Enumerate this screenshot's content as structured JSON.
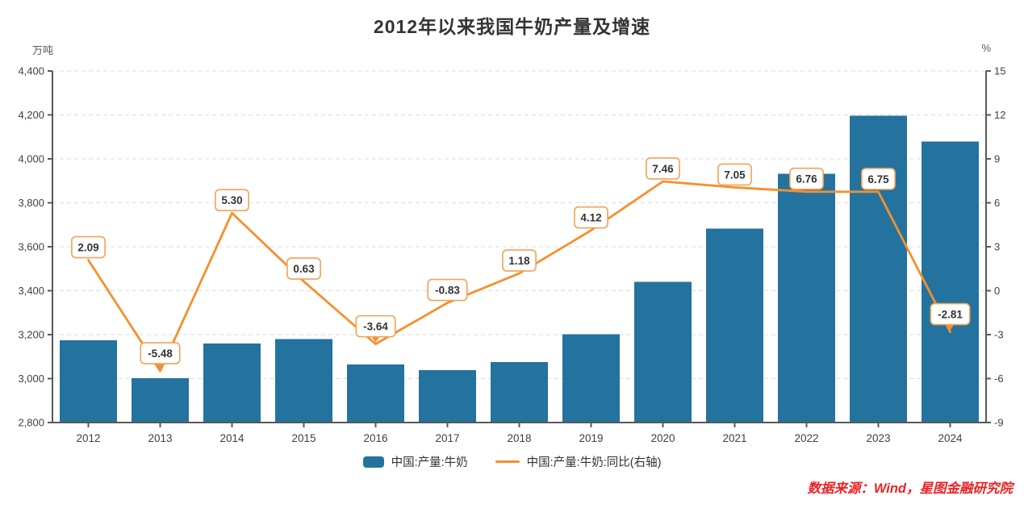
{
  "title": "2012年以来我国牛奶产量及增速",
  "source": "数据来源：Wind，星图金融研究院",
  "axes": {
    "left_unit": "万吨",
    "right_unit": "%"
  },
  "chart_data": {
    "type": "bar",
    "subtype": "bar+line combo, dual axis",
    "title": "2012年以来我国牛奶产量及增速",
    "categories": [
      "2012",
      "2013",
      "2014",
      "2015",
      "2016",
      "2017",
      "2018",
      "2019",
      "2020",
      "2021",
      "2022",
      "2023",
      "2024"
    ],
    "series": [
      {
        "name": "中国:产量:牛奶",
        "type": "bar",
        "axis": "left",
        "unit": "万吨",
        "values": [
          3175,
          3001,
          3160,
          3180,
          3064,
          3039,
          3075,
          3201,
          3440,
          3683,
          3932,
          4197,
          4079
        ]
      },
      {
        "name": "中国:产量:牛奶:同比(右轴)",
        "type": "line",
        "axis": "right",
        "unit": "%",
        "values": [
          2.09,
          -5.48,
          5.3,
          0.63,
          -3.64,
          -0.83,
          1.18,
          4.12,
          7.46,
          7.05,
          6.76,
          6.75,
          -2.81
        ],
        "point_labels": [
          "2.09",
          "-5.48",
          "5.30",
          "0.63",
          "-3.64",
          "-0.83",
          "1.18",
          "4.12",
          "7.46",
          "7.05",
          "6.76",
          "6.75",
          "-2.81"
        ],
        "callout_arrow_indices": [
          1,
          4,
          12
        ]
      }
    ],
    "left_axis": {
      "label": "万吨",
      "min": 2800,
      "max": 4400,
      "step": 200,
      "tick_labels": [
        "2,800",
        "3,000",
        "3,200",
        "3,400",
        "3,600",
        "3,800",
        "4,000",
        "4,200",
        "4,400"
      ]
    },
    "right_axis": {
      "label": "%",
      "min": -9,
      "max": 15,
      "step": 3,
      "tick_labels": [
        "-9",
        "-6",
        "-3",
        "0",
        "3",
        "6",
        "9",
        "12",
        "15"
      ]
    },
    "grid": true,
    "gridline_style": "dashed",
    "legend_position": "bottom"
  },
  "colors": {
    "bar": "#24739E",
    "line": "#F78F2C",
    "label_box_border": "#F2A254",
    "label_box_bg": "#FFFFFF",
    "label_text": "#333333",
    "grid": "#DCDCDC",
    "axis": "#58585A",
    "tick_text": "#404040",
    "title_text": "#333333",
    "source_text": "#ED2224"
  }
}
